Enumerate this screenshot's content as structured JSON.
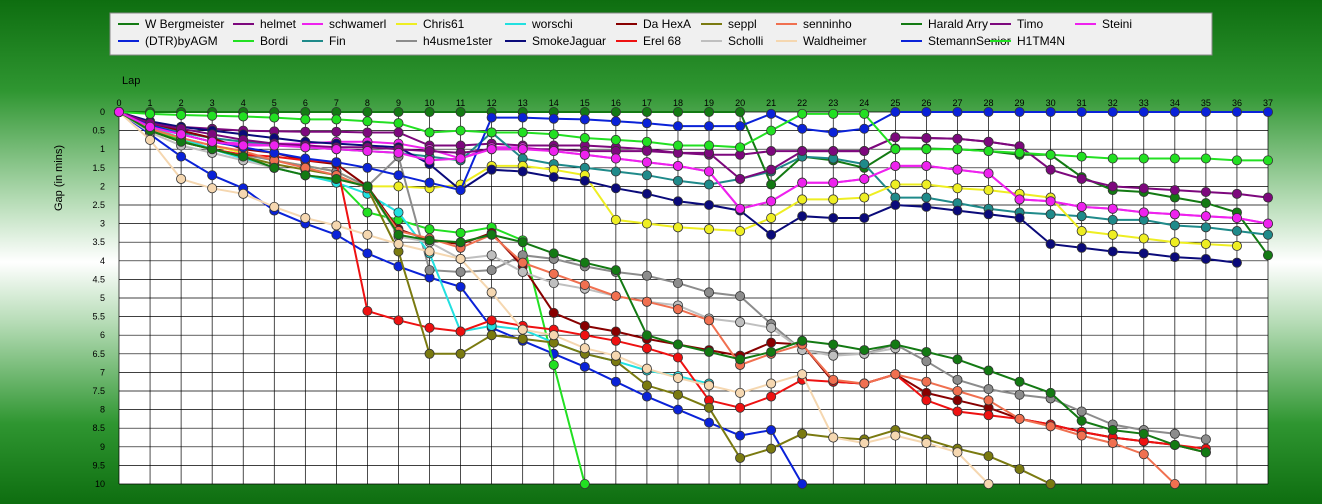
{
  "chart_data": {
    "type": "line",
    "xlabel": "Lap",
    "ylabel": "Gap (in mins)",
    "x_ticks": [
      0,
      1,
      2,
      3,
      4,
      5,
      6,
      7,
      8,
      9,
      10,
      11,
      12,
      13,
      14,
      15,
      16,
      17,
      18,
      19,
      20,
      21,
      22,
      23,
      24,
      25,
      26,
      27,
      28,
      29,
      30,
      31,
      32,
      33,
      34,
      35,
      36,
      37
    ],
    "y_ticks": [
      "0",
      "0.5",
      "1",
      "1.5",
      "2",
      "2.5",
      "3",
      "3.5",
      "4",
      "4.5",
      "5",
      "5.5",
      "6",
      "6.5",
      "7",
      "7.5",
      "8",
      "8.5",
      "9",
      "9.5",
      "10"
    ],
    "xlim": [
      0,
      37
    ],
    "ylim": [
      0,
      10
    ],
    "y_inverted": true,
    "grid": true,
    "legend_position": "top",
    "series": [
      {
        "name": "W Bergmeister",
        "color": "#137a13",
        "values": [
          0,
          0,
          0,
          0,
          0,
          0,
          0,
          0,
          0,
          0,
          0,
          0,
          0,
          0,
          0,
          0,
          0,
          0,
          0,
          0,
          0,
          1.95,
          1.2,
          1.3,
          1.5,
          0.98,
          0.98,
          1.0,
          1.05,
          1.15,
          1.15,
          1.75,
          2.1,
          2.15,
          2.3,
          2.45,
          2.7,
          3.85
        ]
      },
      {
        "name": "(DTR)byAGM",
        "color": "#0a22d8",
        "values": [
          0,
          0.6,
          1.2,
          1.7,
          2.05,
          2.65,
          3.0,
          3.3,
          3.8,
          4.15,
          4.45,
          4.7,
          5.8,
          6.15,
          6.5,
          6.85,
          7.25,
          7.65,
          8.0,
          8.35,
          8.7,
          8.55,
          10.0
        ]
      },
      {
        "name": "helmet",
        "color": "#7d087d",
        "values": [
          0,
          0.3,
          0.4,
          0.45,
          0.5,
          0.52,
          0.53,
          0.53,
          0.55,
          0.55,
          0.9,
          0.9,
          0.85,
          0.9,
          0.9,
          0.9,
          0.95,
          1.0,
          1.1,
          1.15,
          1.15,
          1.05,
          1.05,
          1.05,
          1.05,
          0.68,
          0.7,
          0.72,
          0.8,
          0.92
        ]
      },
      {
        "name": "Bordi",
        "color": "#22e022",
        "values": [
          0,
          0.45,
          0.75,
          1.0,
          1.2,
          1.5,
          1.7,
          1.85,
          2.7,
          2.9,
          3.15,
          3.25,
          3.1,
          3.45,
          6.8,
          10.0
        ]
      },
      {
        "name": "schwamerl",
        "color": "#ee22ee",
        "values": [
          0,
          0.4,
          0.6,
          0.8,
          0.85,
          0.85,
          0.85,
          0.8,
          0.8,
          0.85,
          1.0,
          1.25,
          0.95,
          0.95,
          1.05,
          1.15,
          1.25,
          1.35,
          1.45,
          1.6,
          2.6,
          2.4,
          1.9,
          1.9,
          1.8,
          1.45,
          1.45,
          1.55,
          1.65,
          2.35,
          2.4,
          2.55,
          2.6,
          2.7,
          2.75,
          2.8,
          2.85,
          3.0
        ]
      },
      {
        "name": "Fin",
        "color": "#1f8a8a",
        "values": [
          0,
          0.35,
          0.55,
          0.7,
          0.8,
          0.85,
          0.95,
          1.0,
          1.05,
          1.1,
          1.2,
          1.3,
          0.55,
          1.25,
          1.4,
          1.5,
          1.6,
          1.7,
          1.85,
          1.95,
          1.8,
          1.6,
          1.2,
          1.25,
          1.4,
          2.3,
          2.3,
          2.45,
          2.6,
          2.7,
          2.75,
          2.8,
          2.9,
          2.9,
          3.05,
          3.1,
          3.2,
          3.3
        ]
      },
      {
        "name": "Chris61",
        "color": "#eeee22",
        "values": [
          0,
          0.45,
          0.7,
          0.9,
          1.1,
          1.3,
          1.45,
          1.6,
          2.0,
          2.0,
          2.05,
          1.95,
          1.45,
          1.45,
          1.55,
          1.7,
          2.9,
          3.0,
          3.1,
          3.15,
          3.2,
          2.85,
          2.35,
          2.35,
          2.3,
          1.95,
          1.95,
          2.05,
          2.1,
          2.2,
          2.3,
          3.2,
          3.3,
          3.4,
          3.5,
          3.55,
          3.6
        ]
      },
      {
        "name": "h4usme1ster",
        "color": "#8c8c8c",
        "values": [
          0,
          0.5,
          0.8,
          1.0,
          1.15,
          1.3,
          1.45,
          1.6,
          2.0,
          1.2,
          4.25,
          4.3,
          4.25,
          3.85,
          3.95,
          4.15,
          4.3,
          4.4,
          4.6,
          4.85,
          4.95,
          5.7,
          6.4,
          6.5,
          6.5,
          6.25,
          6.7,
          7.2,
          7.45,
          7.6,
          7.7,
          8.05,
          8.4,
          8.55,
          8.65,
          8.8
        ]
      },
      {
        "name": "worschi",
        "color": "#22e0e0",
        "values": [
          0,
          0.4,
          0.7,
          1.0,
          1.25,
          1.5,
          1.7,
          1.9,
          2.2,
          2.7,
          3.8,
          5.9,
          5.75,
          5.85,
          6.2,
          6.5,
          6.7,
          6.95,
          7.1,
          7.3
        ]
      },
      {
        "name": "SmokeJaguar",
        "color": "#0a0a7a",
        "values": [
          0,
          0.25,
          0.4,
          0.5,
          0.6,
          0.7,
          0.8,
          0.85,
          0.9,
          0.95,
          1.4,
          2.1,
          1.55,
          1.6,
          1.75,
          1.85,
          2.05,
          2.2,
          2.4,
          2.5,
          2.65,
          3.3,
          2.8,
          2.85,
          2.85,
          2.5,
          2.55,
          2.65,
          2.75,
          2.85,
          3.55,
          3.65,
          3.75,
          3.8,
          3.9,
          3.95,
          4.05
        ]
      },
      {
        "name": "Da HexA",
        "color": "#880000",
        "values": [
          0,
          0.3,
          0.5,
          0.7,
          1.0,
          1.1,
          1.3,
          1.4,
          2.0,
          3.15,
          3.45,
          3.55,
          3.25,
          4.15,
          5.4,
          5.75,
          5.9,
          6.1,
          6.25,
          6.4,
          6.55,
          6.2,
          6.25,
          7.25,
          7.3,
          7.05,
          7.55,
          7.75,
          7.95,
          8.25,
          8.4,
          8.6,
          8.75,
          8.85,
          8.95,
          9.15
        ]
      },
      {
        "name": "Erel 68",
        "color": "#ee1111",
        "values": [
          0,
          0.5,
          0.8,
          1.0,
          1.15,
          1.2,
          1.3,
          1.35,
          5.35,
          5.6,
          5.8,
          5.9,
          5.6,
          5.75,
          5.85,
          6.0,
          6.15,
          6.35,
          6.6,
          7.75,
          7.95,
          7.65,
          7.2,
          7.25,
          7.3,
          7.05,
          7.75,
          8.05,
          8.15,
          8.25,
          8.4,
          8.6,
          8.75,
          8.85,
          8.95,
          9.05
        ]
      },
      {
        "name": "seppl",
        "color": "#7a7a10",
        "values": [
          0,
          0.5,
          0.8,
          1.0,
          1.2,
          1.4,
          1.55,
          1.7,
          2.05,
          3.75,
          6.5,
          6.5,
          6.0,
          6.1,
          6.2,
          6.5,
          6.7,
          7.35,
          7.6,
          7.95,
          9.3,
          9.05,
          8.65,
          8.75,
          8.8,
          8.55,
          8.8,
          9.05,
          9.25,
          9.6,
          10.0
        ]
      },
      {
        "name": "Scholli",
        "color": "#bfbfbf",
        "values": [
          0,
          0.55,
          0.9,
          1.1,
          1.3,
          1.5,
          1.7,
          1.8,
          2.0,
          3.35,
          3.5,
          3.95,
          3.85,
          4.3,
          4.6,
          4.75,
          4.95,
          5.1,
          5.2,
          5.55,
          5.65,
          5.8,
          6.4,
          6.55,
          6.5,
          6.35
        ]
      },
      {
        "name": "senninho",
        "color": "#f07050",
        "values": [
          0,
          0.45,
          0.7,
          0.9,
          1.05,
          1.3,
          1.5,
          1.7,
          2.05,
          3.2,
          3.4,
          3.65,
          3.3,
          4.05,
          4.35,
          4.65,
          4.95,
          5.1,
          5.3,
          5.6,
          6.8,
          6.5,
          6.25,
          7.2,
          7.3,
          7.05,
          7.25,
          7.5,
          7.75,
          8.25,
          8.45,
          8.7,
          8.9,
          9.2,
          10.0
        ]
      },
      {
        "name": "Waldheimer",
        "color": "#f5d7b0",
        "values": [
          0,
          0.75,
          1.8,
          2.05,
          2.2,
          2.55,
          2.85,
          3.05,
          3.3,
          3.55,
          3.75,
          3.95,
          4.85,
          5.85,
          6.0,
          6.35,
          6.55,
          6.9,
          7.15,
          7.35,
          7.55,
          7.3,
          7.05,
          8.75,
          8.9,
          8.7,
          8.9,
          9.15,
          10.0
        ]
      },
      {
        "name": "Harald Arry",
        "color": "#137a13",
        "values": [
          0,
          0.5,
          0.8,
          1.0,
          1.2,
          1.5,
          1.7,
          1.8,
          2.0,
          3.3,
          3.45,
          3.5,
          3.3,
          3.5,
          3.8,
          4.05,
          4.25,
          6.0,
          6.25,
          6.45,
          6.65,
          6.45,
          6.15,
          6.25,
          6.4,
          6.25,
          6.45,
          6.65,
          6.95,
          7.25,
          7.55,
          8.3,
          8.55,
          8.65,
          8.95,
          9.15
        ]
      },
      {
        "name": "StemannSenior",
        "color": "#0a22d8",
        "values": [
          0,
          0.35,
          0.6,
          0.8,
          0.95,
          1.1,
          1.25,
          1.35,
          1.5,
          1.7,
          1.9,
          2.1,
          0.15,
          0.15,
          0.18,
          0.2,
          0.25,
          0.3,
          0.38,
          0.38,
          0.38,
          0.05,
          0.45,
          0.55,
          0.45,
          0,
          0,
          0,
          0,
          0,
          0,
          0,
          0,
          0,
          0,
          0,
          0,
          0
        ]
      },
      {
        "name": "Timo",
        "color": "#7d087d",
        "values": [
          0,
          0.3,
          0.45,
          0.6,
          0.75,
          0.85,
          0.9,
          0.95,
          0.95,
          1.0,
          1.05,
          1.1,
          1.0,
          1.0,
          1.0,
          1.05,
          1.05,
          1.05,
          1.1,
          1.1,
          1.8,
          1.55,
          1.05,
          1.05,
          1.05,
          0.68,
          0.7,
          0.72,
          0.8,
          0.92,
          1.55,
          1.8,
          2.0,
          2.05,
          2.1,
          2.15,
          2.2,
          2.3
        ]
      },
      {
        "name": "H1TM4N",
        "color": "#22e022",
        "values": [
          0,
          0.05,
          0.08,
          0.1,
          0.12,
          0.15,
          0.2,
          0.2,
          0.25,
          0.3,
          0.55,
          0.5,
          0.55,
          0.55,
          0.6,
          0.7,
          0.75,
          0.8,
          0.9,
          0.9,
          0.95,
          0.5,
          0.05,
          0.05,
          0.05,
          1.0,
          1.0,
          1.0,
          1.05,
          1.1,
          1.15,
          1.2,
          1.25,
          1.25,
          1.25,
          1.25,
          1.3,
          1.3
        ]
      },
      {
        "name": "Steini",
        "color": "#ee22ee",
        "values": [
          0,
          0.4,
          0.6,
          0.8,
          0.9,
          0.9,
          0.95,
          1.0,
          1.05,
          1.1,
          1.3,
          1.25,
          1.0,
          1.0,
          1.05,
          1.15,
          1.25,
          1.35,
          1.45,
          1.6,
          2.6,
          2.4,
          1.9,
          1.9,
          1.8,
          1.45,
          1.45,
          1.55,
          1.65,
          2.35,
          2.4,
          2.55,
          2.6,
          2.7,
          2.75,
          2.8,
          2.85,
          3.0
        ]
      }
    ]
  }
}
